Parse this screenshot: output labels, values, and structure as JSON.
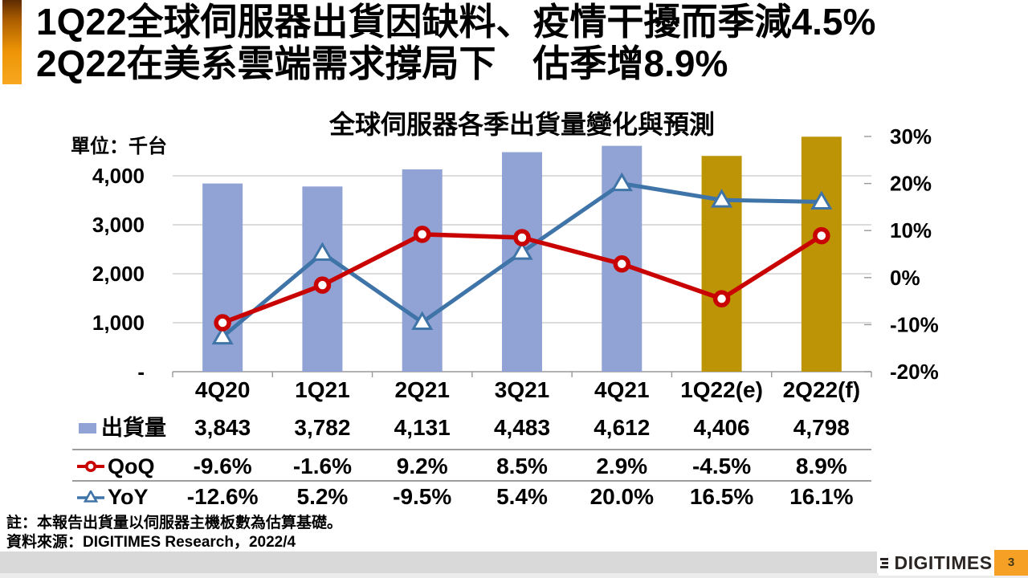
{
  "slide": {
    "title_line1": "1Q22全球伺服器出貨因缺料、疫情干擾而季減4.5%",
    "title_line2": "2Q22在美系雲端需求撐局下　估季增8.9%",
    "note1": "註：本報告出貨量以伺服器主機板數為估算基礎。",
    "note2": "資料來源：DIGITIMES Research，2022/4",
    "logo_text": "DIGITIMES",
    "page_number": "3",
    "colors": {
      "accent_orange": "#ed9405",
      "footer_gray": "#d9d9d9",
      "page_badge_orange": "#f6a125"
    }
  },
  "chart_data": {
    "type": "combo-bar-line",
    "title": "全球伺服器各季出貨量變化與預測",
    "unit_label": "單位：千台",
    "categories": [
      "4Q20",
      "1Q21",
      "2Q21",
      "3Q21",
      "4Q21",
      "1Q22(e)",
      "2Q22(f)"
    ],
    "bar_series": {
      "name": "出貨量",
      "values": [
        3843,
        3782,
        4131,
        4483,
        4612,
        4406,
        4798
      ],
      "colors_by_point": [
        "#90a3d4",
        "#90a3d4",
        "#90a3d4",
        "#90a3d4",
        "#90a3d4",
        "#bd9405",
        "#bd9405"
      ],
      "actual_color": "#90a3d4",
      "forecast_color": "#bd9405"
    },
    "line_series": [
      {
        "name": "QoQ",
        "values": [
          -9.6,
          -1.6,
          9.2,
          8.5,
          2.9,
          -4.5,
          8.9
        ],
        "color": "#c90202",
        "marker": "circle"
      },
      {
        "name": "YoY",
        "values": [
          -12.6,
          5.2,
          -9.5,
          5.4,
          20.0,
          16.5,
          16.1
        ],
        "color": "#3f74a8",
        "marker": "triangle"
      }
    ],
    "left_axis": {
      "values": [
        4000,
        3000,
        2000,
        1000,
        0
      ],
      "ticks": [
        "4,000",
        "3,000",
        "2,000",
        "1,000",
        "-"
      ]
    },
    "right_axis": {
      "values": [
        30,
        20,
        10,
        0,
        -10,
        -20
      ],
      "ticks": [
        "30%",
        "20%",
        "10%",
        "0%",
        "-10%",
        "-20%"
      ]
    },
    "grid": true,
    "legend_position": "table-left",
    "table": {
      "rows": [
        {
          "label": "出貨量",
          "values": [
            "3,843",
            "3,782",
            "4,131",
            "4,483",
            "4,612",
            "4,406",
            "4,798"
          ]
        },
        {
          "label": "QoQ",
          "values": [
            "-9.6%",
            "-1.6%",
            "9.2%",
            "8.5%",
            "2.9%",
            "-4.5%",
            "8.9%"
          ]
        },
        {
          "label": "YoY",
          "values": [
            "-12.6%",
            "5.2%",
            "-9.5%",
            "5.4%",
            "20.0%",
            "16.5%",
            "16.1%"
          ]
        }
      ]
    }
  }
}
